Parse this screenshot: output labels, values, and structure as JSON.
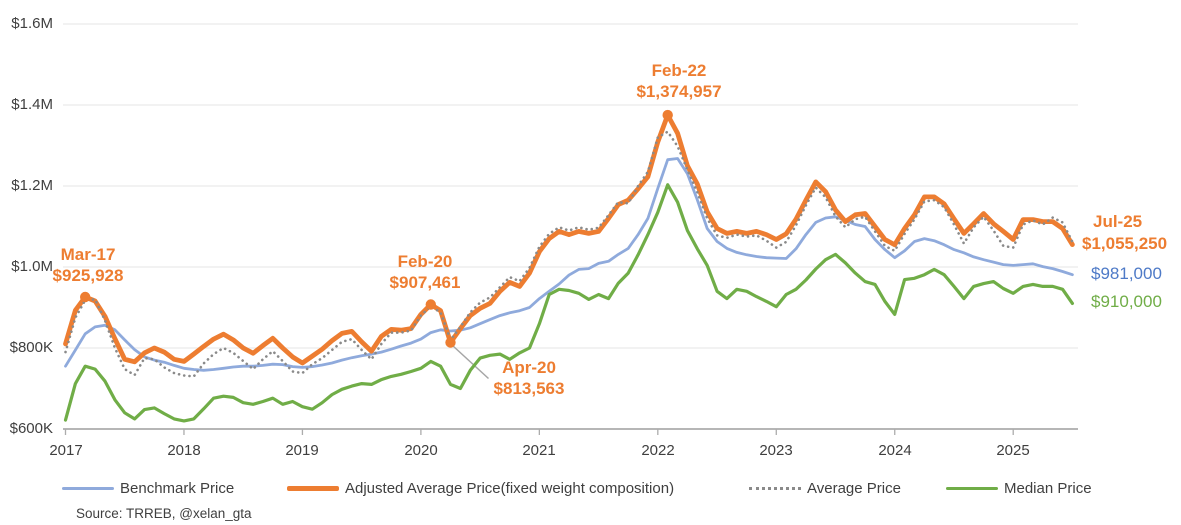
{
  "source": "Source: TRREB, @xelan_gta",
  "colors": {
    "benchmark": "#8FAADC",
    "adjusted_average": "#ED7D31",
    "average": "#8A8A8A",
    "median": "#70AD47",
    "benchmark_label": "#4E7AC7",
    "axis": "#ACACAC",
    "grid": "#EBEBEB",
    "annotation_text": "#ED7D31"
  },
  "legend": {
    "items": [
      {
        "label": "Benchmark Price",
        "color": "#8FAADC",
        "style": "solid"
      },
      {
        "label": "Adjusted Average Price(fixed weight composition)",
        "color": "#ED7D31",
        "style": "solid-thick"
      },
      {
        "label": "Average Price",
        "color": "#8A8A8A",
        "style": "dotted"
      },
      {
        "label": "Median Price",
        "color": "#70AD47",
        "style": "solid"
      }
    ]
  },
  "chart_data": {
    "type": "line",
    "title": "",
    "x_unit": "month",
    "x_start": "2017-01",
    "x_end": "2025-07",
    "grid": "horizontal",
    "ylim": [
      600000,
      1600000
    ],
    "y_axis": {
      "ticks": [
        {
          "label": "$600K",
          "value": 600000
        },
        {
          "label": "$800K",
          "value": 800000
        },
        {
          "label": "$1.0M",
          "value": 1000000
        },
        {
          "label": "$1.2M",
          "value": 1200000
        },
        {
          "label": "$1.4M",
          "value": 1400000
        },
        {
          "label": "$1.6M",
          "value": 1600000
        }
      ]
    },
    "x_axis": {
      "years": [
        "2017",
        "2018",
        "2019",
        "2020",
        "2021",
        "2022",
        "2023",
        "2024",
        "2025"
      ]
    },
    "series": [
      {
        "name": "Benchmark Price",
        "color": "#8FAADC",
        "style": "solid",
        "width": 2.8,
        "values": [
          755000,
          795000,
          835000,
          852000,
          856000,
          845000,
          820000,
          796000,
          778000,
          770000,
          765000,
          757000,
          750000,
          747000,
          745000,
          747000,
          750000,
          753000,
          755000,
          755000,
          757000,
          760000,
          759000,
          754000,
          752000,
          754000,
          758000,
          763000,
          770000,
          776000,
          781000,
          785000,
          790000,
          797000,
          805000,
          812000,
          822000,
          838000,
          845000,
          842000,
          844000,
          850000,
          860000,
          870000,
          880000,
          887000,
          892000,
          900000,
          922000,
          940000,
          958000,
          980000,
          994000,
          996000,
          1009000,
          1014000,
          1031000,
          1046000,
          1080000,
          1120000,
          1194000,
          1265000,
          1268000,
          1230000,
          1166000,
          1095000,
          1063000,
          1046000,
          1036000,
          1030000,
          1026000,
          1023000,
          1022000,
          1021000,
          1045000,
          1080000,
          1110000,
          1121000,
          1124000,
          1115000,
          1105000,
          1100000,
          1068000,
          1043000,
          1023000,
          1040000,
          1063000,
          1070000,
          1065000,
          1055000,
          1043000,
          1035000,
          1025000,
          1018000,
          1012000,
          1006000,
          1004000,
          1006000,
          1008000,
          1001000,
          996000,
          989000,
          981000
        ]
      },
      {
        "name": "Median Price",
        "color": "#70AD47",
        "style": "solid",
        "width": 3.2,
        "values": [
          622000,
          712000,
          755000,
          748000,
          718000,
          672000,
          640000,
          625000,
          648000,
          652000,
          638000,
          625000,
          620000,
          625000,
          650000,
          676000,
          681000,
          678000,
          665000,
          661000,
          668000,
          676000,
          661000,
          668000,
          655000,
          649000,
          665000,
          685000,
          698000,
          706000,
          712000,
          710000,
          722000,
          730000,
          735000,
          742000,
          750000,
          767000,
          755000,
          710000,
          700000,
          745000,
          775000,
          782000,
          785000,
          772000,
          788000,
          800000,
          860000,
          932000,
          945000,
          942000,
          935000,
          920000,
          932000,
          922000,
          960000,
          985000,
          1030000,
          1080000,
          1135000,
          1203000,
          1160000,
          1090000,
          1045000,
          1004000,
          940000,
          922000,
          945000,
          940000,
          927000,
          915000,
          902000,
          932000,
          945000,
          968000,
          995000,
          1018000,
          1031000,
          1010000,
          985000,
          964000,
          957000,
          915000,
          883000,
          969000,
          972000,
          981000,
          994000,
          981000,
          952000,
          922000,
          952000,
          959000,
          964000,
          947000,
          935000,
          952000,
          957000,
          952000,
          952000,
          945000,
          910000
        ]
      },
      {
        "name": "Adjusted Average Price(fixed weight composition)",
        "color": "#ED7D31",
        "style": "solid",
        "width": 4.8,
        "values": [
          810000,
          893000,
          925928,
          916000,
          878000,
          823000,
          772000,
          766000,
          788000,
          800000,
          790000,
          772000,
          767000,
          785000,
          804000,
          822000,
          834000,
          820000,
          800000,
          787000,
          806000,
          824000,
          800000,
          778000,
          763000,
          780000,
          797000,
          818000,
          836000,
          841000,
          815000,
          792000,
          829000,
          846000,
          844000,
          848000,
          883000,
          907461,
          892000,
          813563,
          848000,
          880000,
          898000,
          910000,
          940000,
          962000,
          952000,
          985000,
          1038000,
          1070000,
          1088000,
          1080000,
          1088000,
          1083000,
          1088000,
          1120000,
          1154000,
          1165000,
          1193000,
          1223000,
          1309000,
          1374957,
          1330000,
          1250000,
          1205000,
          1136000,
          1095000,
          1083000,
          1088000,
          1083000,
          1088000,
          1080000,
          1068000,
          1082000,
          1118000,
          1165000,
          1210000,
          1186000,
          1141000,
          1112000,
          1129000,
          1132000,
          1100000,
          1068000,
          1055000,
          1095000,
          1129000,
          1173000,
          1173000,
          1156000,
          1119000,
          1083000,
          1107000,
          1132000,
          1107000,
          1088000,
          1068000,
          1117000,
          1117000,
          1112000,
          1112000,
          1095000,
          1055250
        ]
      },
      {
        "name": "Average Price",
        "color": "#8A8A8A",
        "style": "dotted",
        "width": 2.6,
        "values": [
          790000,
          875000,
          918000,
          920000,
          868000,
          800000,
          748000,
          733000,
          775000,
          772000,
          752000,
          738000,
          732000,
          730000,
          762000,
          785000,
          800000,
          788000,
          768000,
          748000,
          772000,
          792000,
          768000,
          742000,
          738000,
          760000,
          775000,
          795000,
          815000,
          822000,
          795000,
          772000,
          810000,
          838000,
          838000,
          843000,
          880000,
          903000,
          888000,
          820000,
          852000,
          888000,
          912000,
          925000,
          950000,
          975000,
          965000,
          998000,
          1050000,
          1082000,
          1098000,
          1090000,
          1098000,
          1092000,
          1097000,
          1128000,
          1160000,
          1157000,
          1200000,
          1235000,
          1320000,
          1334000,
          1298000,
          1240000,
          1185000,
          1120000,
          1078000,
          1072000,
          1080000,
          1075000,
          1078000,
          1065000,
          1048000,
          1062000,
          1103000,
          1152000,
          1196000,
          1172000,
          1125000,
          1098000,
          1118000,
          1124000,
          1088000,
          1052000,
          1040000,
          1082000,
          1118000,
          1162000,
          1165000,
          1148000,
          1105000,
          1058000,
          1098000,
          1124000,
          1090000,
          1052000,
          1048000,
          1105000,
          1115000,
          1105000,
          1122000,
          1110000,
          1062000
        ]
      }
    ],
    "annotations": [
      {
        "id": "mar17",
        "date": "Mar-17",
        "value_label": "$925,928",
        "value": 925928,
        "month_index": 2,
        "series": "Adjusted Average Price(fixed weight composition)"
      },
      {
        "id": "feb20",
        "date": "Feb-20",
        "value_label": "$907,461",
        "value": 907461,
        "month_index": 37,
        "series": "Adjusted Average Price(fixed weight composition)"
      },
      {
        "id": "apr20",
        "date": "Apr-20",
        "value_label": "$813,563",
        "value": 813563,
        "month_index": 39,
        "series": "Adjusted Average Price(fixed weight composition)",
        "leader_line": true
      },
      {
        "id": "feb22",
        "date": "Feb-22",
        "value_label": "$1,374,957",
        "value": 1374957,
        "month_index": 61,
        "series": "Adjusted Average Price(fixed weight composition)"
      }
    ],
    "end_labels": {
      "date": "Jul-25",
      "items": [
        {
          "series": "Adjusted Average Price(fixed weight composition)",
          "label": "$1,055,250",
          "value": 1055250,
          "color": "#ED7D31",
          "bold": true
        },
        {
          "series": "Benchmark Price",
          "label": "$981,000",
          "value": 981000,
          "color": "#4E7AC7",
          "bold": false
        },
        {
          "series": "Median Price",
          "label": "$910,000",
          "value": 910000,
          "color": "#70AD47",
          "bold": false
        }
      ]
    }
  }
}
